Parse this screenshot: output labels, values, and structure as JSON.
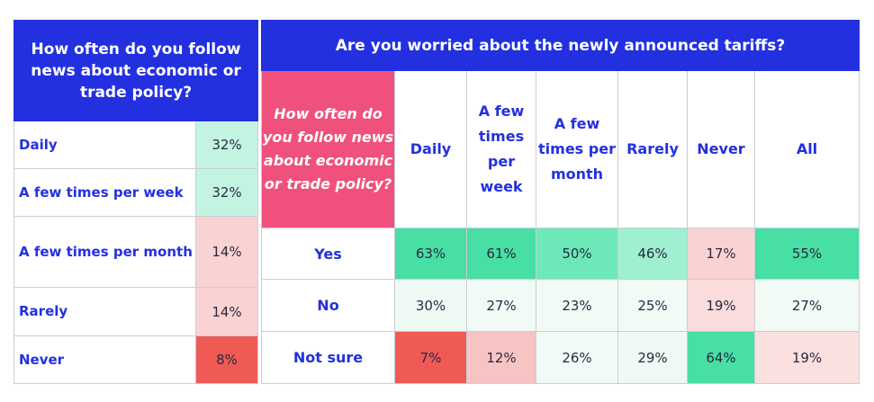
{
  "left_table": {
    "title": "How often do you follow news about economic or trade policy?",
    "rows": [
      {
        "label": "Daily",
        "value": "32%",
        "color": "#c3f4e2"
      },
      {
        "label": "A few times per week",
        "value": "32%",
        "color": "#c3f4e2"
      },
      {
        "label": "A few times per month",
        "value": "14%",
        "color": "#f9d2d2"
      },
      {
        "label": "Rarely",
        "value": "14%",
        "color": "#f9d2d2"
      },
      {
        "label": "Never",
        "value": "8%",
        "color": "#f05a55"
      }
    ]
  },
  "right_table": {
    "title": "Are you worried about the newly announced tariffs?",
    "corner_label": "How often do you follow news about economic or trade policy?",
    "columns": [
      "Daily",
      "A few times per week",
      "A few times per month",
      "Rarely",
      "Never",
      "All"
    ],
    "rows": [
      {
        "label": "Yes",
        "values": [
          "63%",
          "61%",
          "50%",
          "46%",
          "17%",
          "55%"
        ],
        "colors": [
          "#48dfa4",
          "#48dfa4",
          "#6de8b9",
          "#9ef0d0",
          "#f9d2d2",
          "#48dfa4"
        ]
      },
      {
        "label": "No",
        "values": [
          "30%",
          "27%",
          "23%",
          "25%",
          "19%",
          "27%"
        ],
        "colors": [
          "#eef9f4",
          "#f2faf6",
          "#f2faf6",
          "#f2faf6",
          "#fbdcdc",
          "#f2faf6"
        ]
      },
      {
        "label": "Not sure",
        "values": [
          "7%",
          "12%",
          "26%",
          "29%",
          "64%",
          "19%"
        ],
        "colors": [
          "#f05a55",
          "#f7c4c4",
          "#f2faf6",
          "#eef9f4",
          "#48dfa4",
          "#fbe0e0"
        ]
      }
    ]
  },
  "chart_data": [
    {
      "type": "table",
      "title": "How often do you follow news about economic or trade policy?",
      "categories": [
        "Daily",
        "A few times per week",
        "A few times per month",
        "Rarely",
        "Never"
      ],
      "values": [
        32,
        32,
        14,
        14,
        8
      ]
    },
    {
      "type": "table",
      "title": "Are you worried about the newly announced tariffs?",
      "categories": [
        "Daily",
        "A few times per week",
        "A few times per month",
        "Rarely",
        "Never",
        "All"
      ],
      "series": [
        {
          "name": "Yes",
          "values": [
            63,
            61,
            50,
            46,
            17,
            55
          ]
        },
        {
          "name": "No",
          "values": [
            30,
            27,
            23,
            25,
            19,
            27
          ]
        },
        {
          "name": "Not sure",
          "values": [
            7,
            12,
            26,
            29,
            64,
            19
          ]
        }
      ]
    }
  ]
}
